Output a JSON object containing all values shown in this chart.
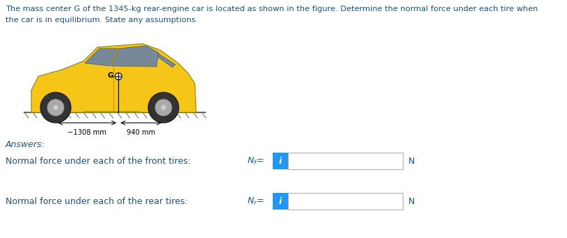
{
  "title_line1": "The mass center G of the 1345-kg rear-engine car is located as shown in the figure. Determine the normal force under each tire when",
  "title_line2": "the car is in equilibrium. State any assumptions.",
  "title_color": "#1a5276",
  "answers_label": "Answers:",
  "answers_color": "#1a5276",
  "row1_label": "Normal force under each of the front tires:",
  "row1_var_text": "N_f =",
  "row2_label": "Normal force under each of the rear tires:",
  "row2_var_text": "N_r =",
  "label_color": "#1a5276",
  "unit": "N",
  "box_bg": "#ffffff",
  "box_border": "#b0b0b0",
  "info_btn_color": "#2196f3",
  "info_btn_text": "i",
  "info_btn_text_color": "#ffffff",
  "dim_text_left": "−1308 mm",
  "dim_text_right": "940 mm",
  "dim_color": "#000000",
  "background_color": "#ffffff",
  "fig_width": 8.15,
  "fig_height": 3.43,
  "dpi": 100,
  "car_body_color": "#f5c518",
  "car_body_dark": "#d4a800",
  "car_roof_color": "#e8b800",
  "wheel_color": "#333333",
  "hub_color": "#cccccc",
  "ground_color": "#666666",
  "window_color": "#778899",
  "car_detail_color": "#888800"
}
